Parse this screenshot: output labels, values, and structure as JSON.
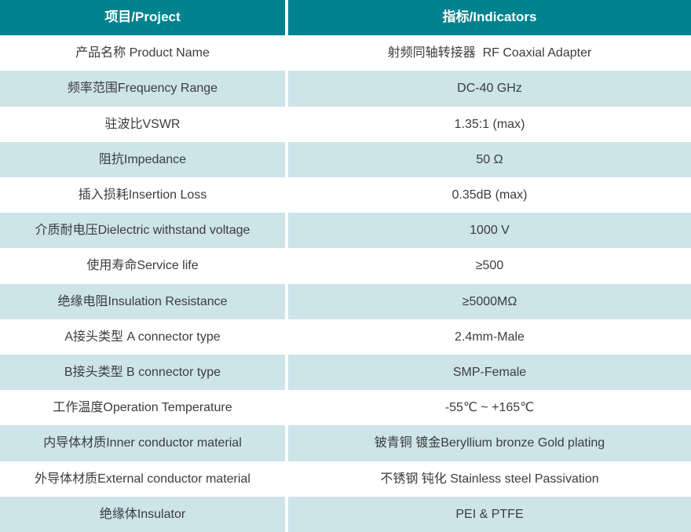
{
  "table": {
    "colors": {
      "header_bg": "#00838f",
      "header_text": "#ffffff",
      "alt_row_bg": "#cde4e9",
      "body_text": "#3c3c3c"
    },
    "header": {
      "project": "项目/Project",
      "indicators": "指标/Indicators"
    },
    "rows": [
      {
        "project": "产品名称 Product Name",
        "indicator": "射频同轴转接器  RF Coaxial Adapter"
      },
      {
        "project": "频率范围Frequency Range",
        "indicator": "DC-40 GHz"
      },
      {
        "project": "驻波比VSWR",
        "indicator": "1.35:1 (max)"
      },
      {
        "project": "阻抗Impedance",
        "indicator": "50 Ω"
      },
      {
        "project": "插入损耗Insertion Loss",
        "indicator": "0.35dB (max)"
      },
      {
        "project": "介质耐电压Dielectric withstand voltage",
        "indicator": "1000 V"
      },
      {
        "project": "使用寿命Service life",
        "indicator": "≥500"
      },
      {
        "project": "绝缘电阻Insulation Resistance",
        "indicator": "≥5000MΩ"
      },
      {
        "project": "A接头类型 A connector type",
        "indicator": "2.4mm-Male"
      },
      {
        "project": "B接头类型 B connector type",
        "indicator": "SMP-Female"
      },
      {
        "project": "工作温度Operation Temperature",
        "indicator": "-55℃ ~ +165℃"
      },
      {
        "project": "内导体材质Inner conductor material",
        "indicator": "铍青铜 镀金Beryllium bronze Gold plating"
      },
      {
        "project": "外导体材质External conductor material",
        "indicator": "不锈钢 钝化 Stainless steel Passivation"
      },
      {
        "project": "绝缘体Insulator",
        "indicator": "PEI & PTFE"
      }
    ]
  }
}
